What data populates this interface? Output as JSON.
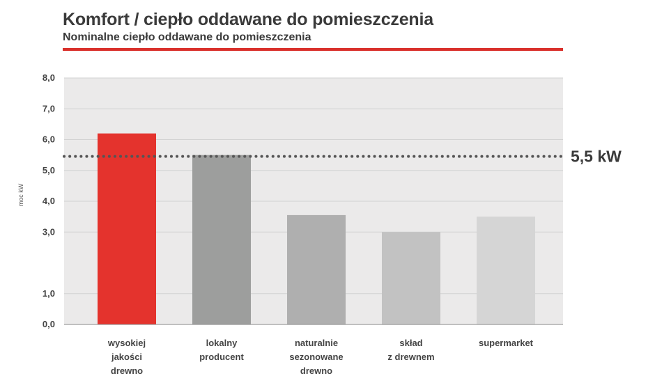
{
  "chart_data": {
    "type": "bar",
    "title": "Komfort / ciepło oddawane do pomieszczenia",
    "subtitle": "Nominalne ciepło oddawane do pomieszczenia",
    "ylabel": "moc kW",
    "xlabel": "",
    "ylim": [
      0,
      8
    ],
    "tick_values": [
      0,
      1,
      3,
      4,
      5,
      6,
      7,
      8
    ],
    "tick_labels": [
      "0,0",
      "1,0",
      "3,0",
      "4,0",
      "5,0",
      "6,0",
      "7,0",
      "8,0"
    ],
    "categories": [
      [
        "wysokiej",
        "jakości",
        "drewno"
      ],
      [
        "lokalny",
        "producent"
      ],
      [
        "naturalnie",
        "sezonowane",
        "drewno"
      ],
      [
        "skład",
        "z drewnem"
      ],
      [
        "supermarket"
      ]
    ],
    "values": [
      6.2,
      5.5,
      3.55,
      3.0,
      3.5
    ],
    "bar_colors": [
      "#e4332d",
      "#9d9e9d",
      "#afafaf",
      "#c2c2c2",
      "#d5d5d5"
    ],
    "reference_line": {
      "value": 5.5,
      "label": "5,5 kW",
      "style": "dotted",
      "color": "#555555"
    },
    "grid": true,
    "plot_background": "#ebeaea",
    "accent_color": "#d9302b"
  }
}
